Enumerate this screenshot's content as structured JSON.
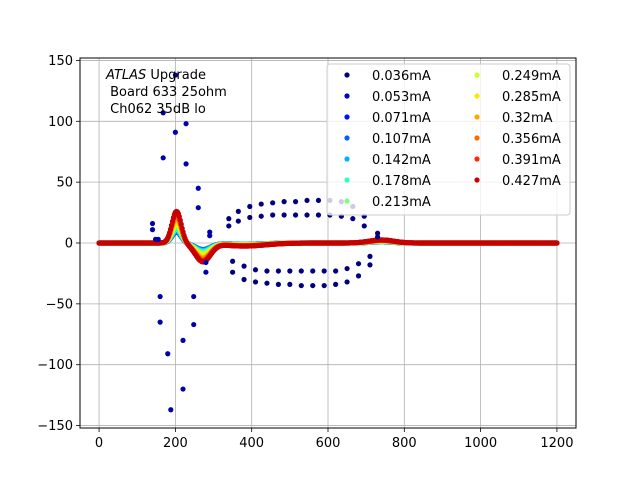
{
  "chart_data": {
    "type": "scatter",
    "title": "",
    "xlabel": "",
    "ylabel": "",
    "xlim": [
      -50,
      1250
    ],
    "ylim": [
      -152,
      152
    ],
    "xticks": [
      0,
      200,
      400,
      600,
      800,
      1000,
      1200
    ],
    "yticks": [
      -150,
      -100,
      -50,
      0,
      50,
      100,
      150
    ],
    "xtick_labels": [
      "0",
      "200",
      "400",
      "600",
      "800",
      "1000",
      "1200"
    ],
    "ytick_labels": [
      "−150",
      "−100",
      "−50",
      "0",
      "50",
      "100",
      "150"
    ],
    "grid": true,
    "legend_position": "top-right",
    "annotation": {
      "italic_part": "ATLAS",
      "line1_rest": " Upgrade",
      "line2": " Board 633 25ohm",
      "line3": " Ch062 35dB lo"
    },
    "series": [
      {
        "name": "0.036mA",
        "color": "#00007f",
        "scale": 1.0
      },
      {
        "name": "0.053mA",
        "color": "#0000c8",
        "scale": 0.6
      },
      {
        "name": "0.071mA",
        "color": "#0010ff",
        "scale": 0.35
      },
      {
        "name": "0.107mA",
        "color": "#0060ff",
        "scale": 0.35
      },
      {
        "name": "0.142mA",
        "color": "#00b0ff",
        "scale": 0.4
      },
      {
        "name": "0.178mA",
        "color": "#29ffce",
        "scale": 0.45
      },
      {
        "name": "0.213mA",
        "color": "#7dff7a",
        "scale": 0.55
      },
      {
        "name": "0.249mA",
        "color": "#ceff29",
        "scale": 0.6
      },
      {
        "name": "0.285mA",
        "color": "#ffe500",
        "scale": 0.7
      },
      {
        "name": "0.32mA",
        "color": "#ffa700",
        "scale": 0.8
      },
      {
        "name": "0.356mA",
        "color": "#ff6800",
        "scale": 0.88
      },
      {
        "name": "0.391mA",
        "color": "#ff2900",
        "scale": 0.95
      },
      {
        "name": "0.427mA",
        "color": "#c80000",
        "scale": 1.0
      }
    ],
    "outlier_points": [
      {
        "x": 140,
        "y": 16
      },
      {
        "x": 140,
        "y": 11
      },
      {
        "x": 148,
        "y": 3
      },
      {
        "x": 155,
        "y": 3
      },
      {
        "x": 160,
        "y": -44
      },
      {
        "x": 160,
        "y": -65
      },
      {
        "x": 168,
        "y": 107
      },
      {
        "x": 168,
        "y": 70
      },
      {
        "x": 180,
        "y": -91
      },
      {
        "x": 188,
        "y": -137
      },
      {
        "x": 200,
        "y": 138
      },
      {
        "x": 200,
        "y": 91
      },
      {
        "x": 220,
        "y": -80
      },
      {
        "x": 220,
        "y": -120
      },
      {
        "x": 228,
        "y": 98
      },
      {
        "x": 228,
        "y": 65
      },
      {
        "x": 248,
        "y": -67
      },
      {
        "x": 248,
        "y": -44
      },
      {
        "x": 260,
        "y": 45
      },
      {
        "x": 260,
        "y": 29
      },
      {
        "x": 280,
        "y": -24
      },
      {
        "x": 280,
        "y": -16
      },
      {
        "x": 290,
        "y": 9
      },
      {
        "x": 290,
        "y": 6
      },
      {
        "x": 340,
        "y": 20
      },
      {
        "x": 340,
        "y": 14
      },
      {
        "x": 350,
        "y": -24
      },
      {
        "x": 350,
        "y": -15
      },
      {
        "x": 365,
        "y": 26
      },
      {
        "x": 365,
        "y": 18
      },
      {
        "x": 380,
        "y": -30
      },
      {
        "x": 380,
        "y": -19
      },
      {
        "x": 395,
        "y": 30
      },
      {
        "x": 395,
        "y": 21
      },
      {
        "x": 410,
        "y": -32
      },
      {
        "x": 410,
        "y": -22
      },
      {
        "x": 425,
        "y": 32
      },
      {
        "x": 425,
        "y": 22
      },
      {
        "x": 440,
        "y": -33
      },
      {
        "x": 440,
        "y": -23
      },
      {
        "x": 455,
        "y": 33
      },
      {
        "x": 455,
        "y": 23
      },
      {
        "x": 470,
        "y": -34
      },
      {
        "x": 470,
        "y": -23
      },
      {
        "x": 485,
        "y": 34
      },
      {
        "x": 485,
        "y": 23
      },
      {
        "x": 500,
        "y": -34
      },
      {
        "x": 500,
        "y": -23
      },
      {
        "x": 515,
        "y": 34
      },
      {
        "x": 515,
        "y": 23
      },
      {
        "x": 530,
        "y": -35
      },
      {
        "x": 530,
        "y": -23
      },
      {
        "x": 545,
        "y": 35
      },
      {
        "x": 545,
        "y": 23
      },
      {
        "x": 560,
        "y": -35
      },
      {
        "x": 560,
        "y": -23
      },
      {
        "x": 575,
        "y": 35
      },
      {
        "x": 575,
        "y": 23
      },
      {
        "x": 590,
        "y": -35
      },
      {
        "x": 590,
        "y": -23
      },
      {
        "x": 605,
        "y": 35
      },
      {
        "x": 605,
        "y": 23
      },
      {
        "x": 620,
        "y": -34
      },
      {
        "x": 620,
        "y": -23
      },
      {
        "x": 635,
        "y": 34
      },
      {
        "x": 635,
        "y": 22
      },
      {
        "x": 650,
        "y": -32
      },
      {
        "x": 650,
        "y": -21
      },
      {
        "x": 665,
        "y": 30
      },
      {
        "x": 665,
        "y": 20
      },
      {
        "x": 680,
        "y": -27
      },
      {
        "x": 680,
        "y": -17
      },
      {
        "x": 695,
        "y": 22
      },
      {
        "x": 695,
        "y": 14
      },
      {
        "x": 710,
        "y": -18
      },
      {
        "x": 710,
        "y": -11
      },
      {
        "x": 730,
        "y": 8
      },
      {
        "x": 730,
        "y": 5
      }
    ]
  }
}
